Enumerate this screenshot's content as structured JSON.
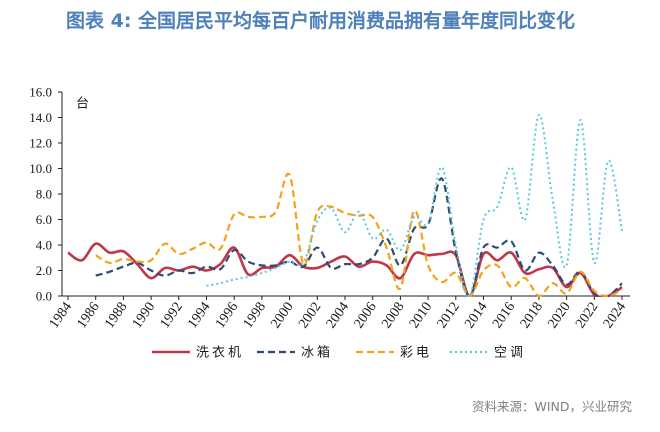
{
  "source": "资料来源：WIND，兴业研究",
  "chart_data": {
    "type": "line",
    "title": "图表 4: 全国居民平均每百户耐用消费品拥有量年度同比变化",
    "ylabel": "台",
    "ylim": [
      0,
      16
    ],
    "yticks": [
      "0.0",
      "2.0",
      "4.0",
      "6.0",
      "8.0",
      "10.0",
      "12.0",
      "14.0",
      "16.0"
    ],
    "xticks": [
      "1984",
      "1986",
      "1988",
      "1990",
      "1992",
      "1994",
      "1996",
      "1998",
      "2000",
      "2002",
      "2004",
      "2006",
      "2008",
      "2010",
      "2012",
      "2014",
      "2016",
      "2018",
      "2020",
      "2022",
      "2024"
    ],
    "grid": false,
    "legend": "bottom",
    "x": [
      1984,
      1985,
      1986,
      1987,
      1988,
      1989,
      1990,
      1991,
      1992,
      1993,
      1994,
      1995,
      1996,
      1997,
      1998,
      1999,
      2000,
      2001,
      2002,
      2003,
      2004,
      2005,
      2006,
      2007,
      2008,
      2009,
      2010,
      2011,
      2012,
      2013,
      2014,
      2015,
      2016,
      2017,
      2018,
      2019,
      2020,
      2021,
      2022,
      2023,
      2024
    ],
    "series": [
      {
        "name": "洗衣机",
        "color": "#c1374a",
        "dash": "solid",
        "values": [
          3.4,
          2.8,
          4.1,
          3.4,
          3.5,
          2.5,
          1.4,
          2.2,
          2.0,
          2.3,
          2.0,
          2.5,
          3.8,
          1.7,
          2.2,
          2.3,
          3.2,
          2.3,
          2.2,
          2.7,
          3.1,
          2.3,
          2.7,
          2.4,
          1.4,
          3.3,
          3.2,
          3.3,
          3.2,
          0.0,
          3.3,
          2.8,
          3.4,
          1.8,
          2.1,
          2.2,
          0.7,
          1.8,
          0.1,
          0.0,
          0.7
        ]
      },
      {
        "name": "冰箱",
        "color": "#2f4b73",
        "dash": "dashed",
        "values": [
          null,
          null,
          1.6,
          1.9,
          2.3,
          2.6,
          2.0,
          1.6,
          2.0,
          1.8,
          2.3,
          2.1,
          3.6,
          2.7,
          2.4,
          2.4,
          2.7,
          2.3,
          3.8,
          2.2,
          2.5,
          2.5,
          3.0,
          4.5,
          2.4,
          5.3,
          5.6,
          9.2,
          3.5,
          0.0,
          3.8,
          3.8,
          4.3,
          2.0,
          3.4,
          2.4,
          0.9,
          1.9,
          0.2,
          0.0,
          1.0
        ]
      },
      {
        "name": "彩电",
        "color": "#f2a31c",
        "dash": "dashed",
        "values": [
          null,
          null,
          3.2,
          2.6,
          2.9,
          2.7,
          2.8,
          4.1,
          3.3,
          3.7,
          4.2,
          3.7,
          6.4,
          6.2,
          6.2,
          6.6,
          9.5,
          2.5,
          6.6,
          7.0,
          6.5,
          6.3,
          6.2,
          3.8,
          0.6,
          6.7,
          2.4,
          1.1,
          1.8,
          0.0,
          2.0,
          2.4,
          0.7,
          1.4,
          0.0,
          1.0,
          0.2,
          1.9,
          0.4,
          0.0,
          0.5
        ]
      },
      {
        "name": "空调",
        "color": "#57c9d9",
        "dash": "dotted",
        "values": [
          null,
          null,
          null,
          null,
          null,
          null,
          null,
          null,
          null,
          null,
          0.8,
          1.0,
          1.3,
          1.5,
          1.8,
          2.2,
          2.7,
          2.6,
          5.9,
          6.9,
          5.0,
          6.6,
          4.5,
          5.2,
          3.6,
          6.2,
          5.7,
          10.1,
          4.0,
          0.0,
          6.0,
          7.0,
          10.1,
          6.0,
          14.2,
          7.5,
          2.4,
          13.8,
          2.6,
          10.6,
          5.1
        ]
      }
    ]
  }
}
